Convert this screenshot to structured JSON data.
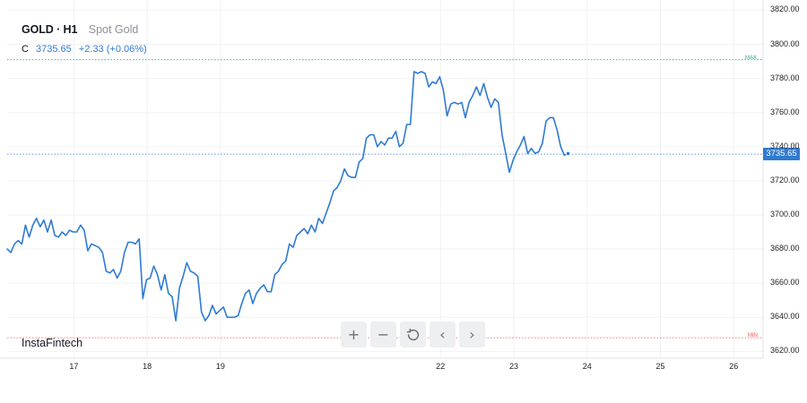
{
  "legend": {
    "symbol": "GOLD · H1",
    "name": "Spot Gold",
    "close_label": "C",
    "close_value": "3735.65",
    "change": "+2.33 (+0.06%)"
  },
  "brand": "InstaFintech",
  "controls": [
    {
      "icon": "plus-icon",
      "glyph": "+"
    },
    {
      "icon": "minus-icon",
      "glyph": "−"
    },
    {
      "icon": "reset-icon",
      "glyph": ""
    },
    {
      "icon": "chevron-left-icon",
      "glyph": "‹"
    },
    {
      "icon": "chevron-right-icon",
      "glyph": "›"
    }
  ],
  "colors": {
    "line": "#2f7ad1",
    "max": "#26a69a",
    "min": "#ef5350",
    "grid": "#f1f2f4"
  },
  "chart_data": {
    "type": "line",
    "title": "GOLD · H1",
    "subtitle": "Spot Gold",
    "x_ticks": [
      {
        "label": "17",
        "x": 17
      },
      {
        "label": "18",
        "x": 18
      },
      {
        "label": "19",
        "x": 19
      },
      {
        "label": "22",
        "x": 22
      },
      {
        "label": "23",
        "x": 23
      },
      {
        "label": "24",
        "x": 24
      },
      {
        "label": "25",
        "x": 25
      },
      {
        "label": "26",
        "x": 26
      }
    ],
    "xlim": [
      16.09,
      26.4
    ],
    "ylim": [
      3616,
      3826
    ],
    "y_ticks": [
      "3620.00",
      "3640.00",
      "3660.00",
      "3680.00",
      "3700.00",
      "3720.00",
      "3740.00",
      "3760.00",
      "3780.00",
      "3800.00",
      "3820.00"
    ],
    "grid": true,
    "current_price": "3735.65",
    "max_label": "MAX",
    "max_value": 3791,
    "min_label": "MIN",
    "min_value": 3628,
    "series": [
      {
        "points": [
          [
            16.09,
            3680
          ],
          [
            16.14,
            3678
          ],
          [
            16.19,
            3683
          ],
          [
            16.24,
            3685
          ],
          [
            16.29,
            3683
          ],
          [
            16.34,
            3694
          ],
          [
            16.39,
            3687
          ],
          [
            16.44,
            3694
          ],
          [
            16.49,
            3698
          ],
          [
            16.54,
            3693
          ],
          [
            16.59,
            3697
          ],
          [
            16.64,
            3690
          ],
          [
            16.69,
            3697
          ],
          [
            16.74,
            3688
          ],
          [
            16.79,
            3687
          ],
          [
            16.84,
            3690
          ],
          [
            16.89,
            3688
          ],
          [
            16.94,
            3691
          ],
          [
            16.99,
            3690
          ],
          [
            17.04,
            3690
          ],
          [
            17.09,
            3694
          ],
          [
            17.14,
            3691
          ],
          [
            17.19,
            3679
          ],
          [
            17.24,
            3683
          ],
          [
            17.29,
            3682
          ],
          [
            17.34,
            3681
          ],
          [
            17.39,
            3678
          ],
          [
            17.44,
            3667
          ],
          [
            17.49,
            3666
          ],
          [
            17.54,
            3668
          ],
          [
            17.59,
            3663
          ],
          [
            17.64,
            3667
          ],
          [
            17.69,
            3678
          ],
          [
            17.74,
            3684
          ],
          [
            17.79,
            3684
          ],
          [
            17.84,
            3683
          ],
          [
            17.89,
            3686
          ],
          [
            17.94,
            3651
          ],
          [
            17.99,
            3662
          ],
          [
            18.04,
            3663
          ],
          [
            18.09,
            3670
          ],
          [
            18.14,
            3665
          ],
          [
            18.19,
            3656
          ],
          [
            18.24,
            3665
          ],
          [
            18.29,
            3654
          ],
          [
            18.34,
            3652
          ],
          [
            18.39,
            3638
          ],
          [
            18.44,
            3657
          ],
          [
            18.49,
            3664
          ],
          [
            18.54,
            3672
          ],
          [
            18.59,
            3667
          ],
          [
            18.64,
            3666
          ],
          [
            18.69,
            3664
          ],
          [
            18.74,
            3643
          ],
          [
            18.79,
            3638
          ],
          [
            18.84,
            3641
          ],
          [
            18.89,
            3647
          ],
          [
            18.94,
            3642
          ],
          [
            18.99,
            3644
          ],
          [
            19.04,
            3646
          ],
          [
            19.09,
            3640
          ],
          [
            19.14,
            3640
          ],
          [
            19.19,
            3640
          ],
          [
            19.24,
            3641
          ],
          [
            19.29,
            3648
          ],
          [
            19.34,
            3654
          ],
          [
            19.39,
            3656
          ],
          [
            19.44,
            3648
          ],
          [
            19.49,
            3654
          ],
          [
            19.54,
            3657
          ],
          [
            19.59,
            3659
          ],
          [
            19.64,
            3655
          ],
          [
            19.69,
            3655
          ],
          [
            19.74,
            3665
          ],
          [
            19.79,
            3667
          ],
          [
            19.84,
            3671
          ],
          [
            19.89,
            3673
          ],
          [
            19.94,
            3683
          ],
          [
            19.99,
            3681
          ],
          [
            20.04,
            3688
          ],
          [
            20.09,
            3690
          ],
          [
            20.14,
            3692
          ],
          [
            20.19,
            3689
          ],
          [
            20.24,
            3694
          ],
          [
            20.29,
            3690
          ],
          [
            20.34,
            3698
          ],
          [
            20.39,
            3695
          ],
          [
            20.44,
            3701
          ],
          [
            20.49,
            3707
          ],
          [
            20.54,
            3714
          ],
          [
            20.59,
            3716
          ],
          [
            20.64,
            3720
          ],
          [
            20.69,
            3727
          ],
          [
            20.74,
            3723
          ],
          [
            20.79,
            3722
          ],
          [
            20.84,
            3722
          ],
          [
            20.89,
            3731
          ],
          [
            20.94,
            3733
          ],
          [
            20.99,
            3745
          ],
          [
            21.04,
            3747
          ],
          [
            21.09,
            3747
          ],
          [
            21.14,
            3740
          ],
          [
            21.19,
            3743
          ],
          [
            21.24,
            3741
          ],
          [
            21.29,
            3745
          ],
          [
            21.34,
            3745
          ],
          [
            21.39,
            3749
          ],
          [
            21.44,
            3740
          ],
          [
            21.49,
            3742
          ],
          [
            21.54,
            3753
          ],
          [
            21.59,
            3753
          ],
          [
            21.64,
            3784
          ],
          [
            21.69,
            3783
          ],
          [
            21.74,
            3784
          ],
          [
            21.79,
            3783
          ],
          [
            21.84,
            3775
          ],
          [
            21.89,
            3778
          ],
          [
            21.94,
            3777
          ],
          [
            21.99,
            3781
          ],
          [
            22.04,
            3773
          ],
          [
            22.09,
            3758
          ],
          [
            22.14,
            3765
          ],
          [
            22.19,
            3766
          ],
          [
            22.24,
            3765
          ],
          [
            22.29,
            3766
          ],
          [
            22.34,
            3757
          ],
          [
            22.39,
            3766
          ],
          [
            22.44,
            3770
          ],
          [
            22.49,
            3775
          ],
          [
            22.54,
            3770
          ],
          [
            22.59,
            3777
          ],
          [
            22.64,
            3769
          ],
          [
            22.69,
            3763
          ],
          [
            22.74,
            3768
          ],
          [
            22.79,
            3766
          ],
          [
            22.84,
            3747
          ],
          [
            22.89,
            3736
          ],
          [
            22.94,
            3725
          ],
          [
            22.99,
            3732
          ],
          [
            23.04,
            3737
          ],
          [
            23.09,
            3741
          ],
          [
            23.14,
            3746
          ],
          [
            23.19,
            3736
          ],
          [
            23.24,
            3739
          ],
          [
            23.29,
            3736
          ],
          [
            23.34,
            3737
          ],
          [
            23.39,
            3742
          ],
          [
            23.44,
            3755
          ],
          [
            23.49,
            3757
          ],
          [
            23.54,
            3757
          ],
          [
            23.59,
            3750
          ],
          [
            23.64,
            3740
          ],
          [
            23.69,
            3735
          ],
          [
            23.74,
            3736
          ]
        ]
      }
    ]
  }
}
